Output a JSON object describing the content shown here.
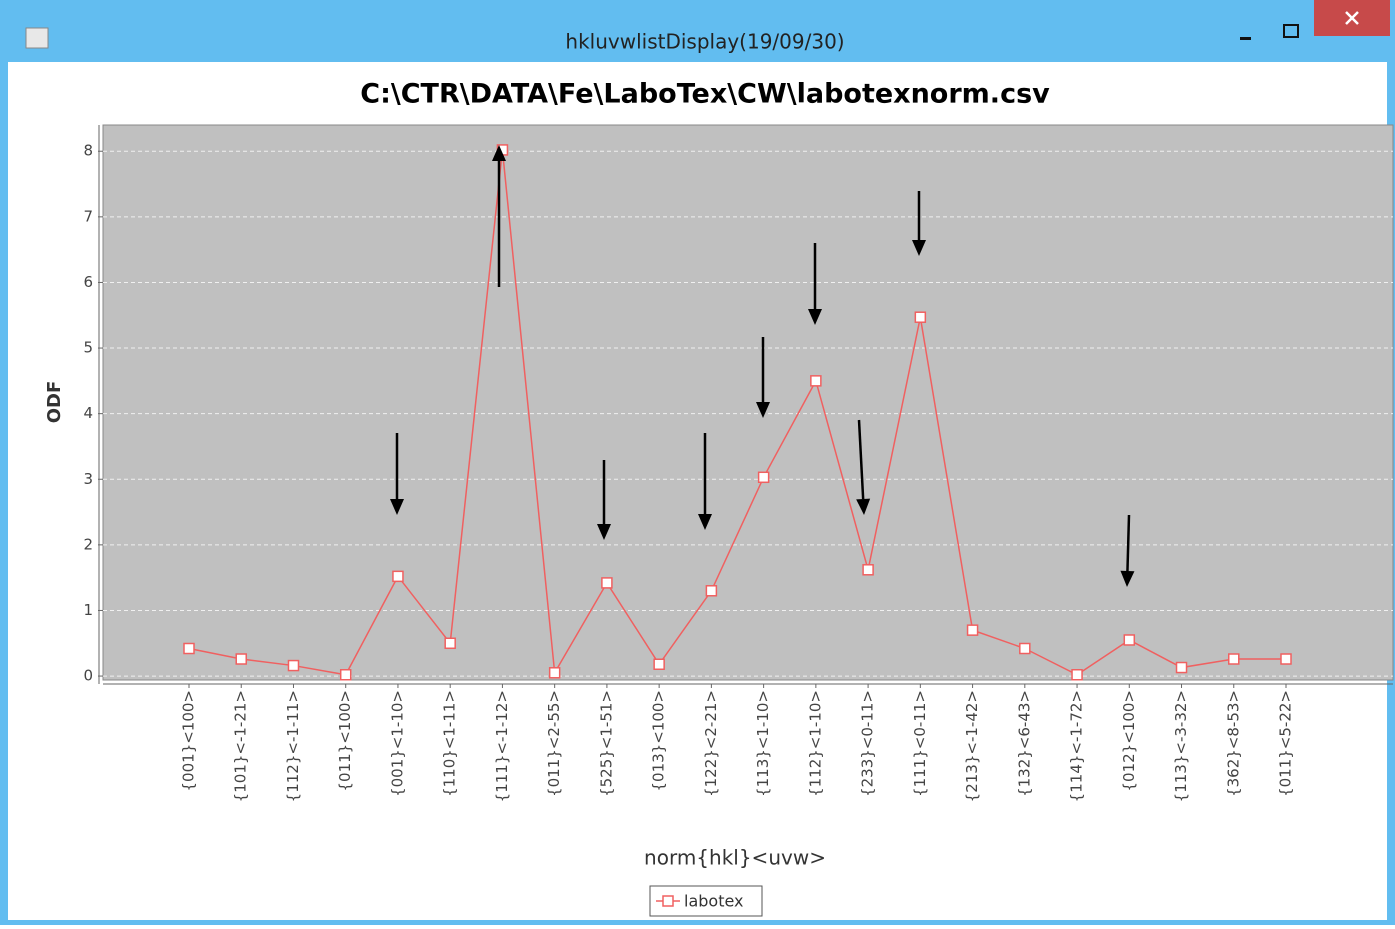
{
  "window": {
    "title": "hkluvwlistDisplay(19/09/30)"
  },
  "chart_data": {
    "type": "line",
    "title": "C:\\CTR\\DATA\\Fe\\LaboTex\\CW\\labotexnorm.csv",
    "x_label": "norm{hkl}<uvw>",
    "y_label": "ODF",
    "categories": [
      "{001}<100>",
      "{101}<-1-21>",
      "{112}<-1-11>",
      "{011}<100>",
      "{001}<1-10>",
      "{110}<1-11>",
      "{111}<-1-12>",
      "{011}<2-55>",
      "{525}<1-51>",
      "{013}<100>",
      "{122}<2-21>",
      "{113}<1-10>",
      "{112}<1-10>",
      "{233}<0-11>",
      "{111}<0-11>",
      "{213}<-1-42>",
      "{132}<6-43>",
      "{114}<-1-72>",
      "{012}<100>",
      "{113}<-3-32>",
      "{362}<8-53>",
      "{011}<5-22>"
    ],
    "series": [
      {
        "name": "labotex",
        "color": "#f06060",
        "values": [
          0.42,
          0.26,
          0.16,
          0.02,
          1.52,
          0.5,
          8.02,
          0.05,
          1.42,
          0.18,
          1.3,
          3.03,
          4.5,
          1.62,
          5.47,
          0.7,
          0.42,
          0.02,
          0.55,
          0.13,
          0.26,
          0.26
        ]
      }
    ],
    "ylim": [
      -0.06,
      8.4
    ],
    "yticks": [
      0,
      1,
      2,
      3,
      4,
      5,
      6,
      7,
      8
    ],
    "grid": true,
    "legend": "bottom"
  }
}
